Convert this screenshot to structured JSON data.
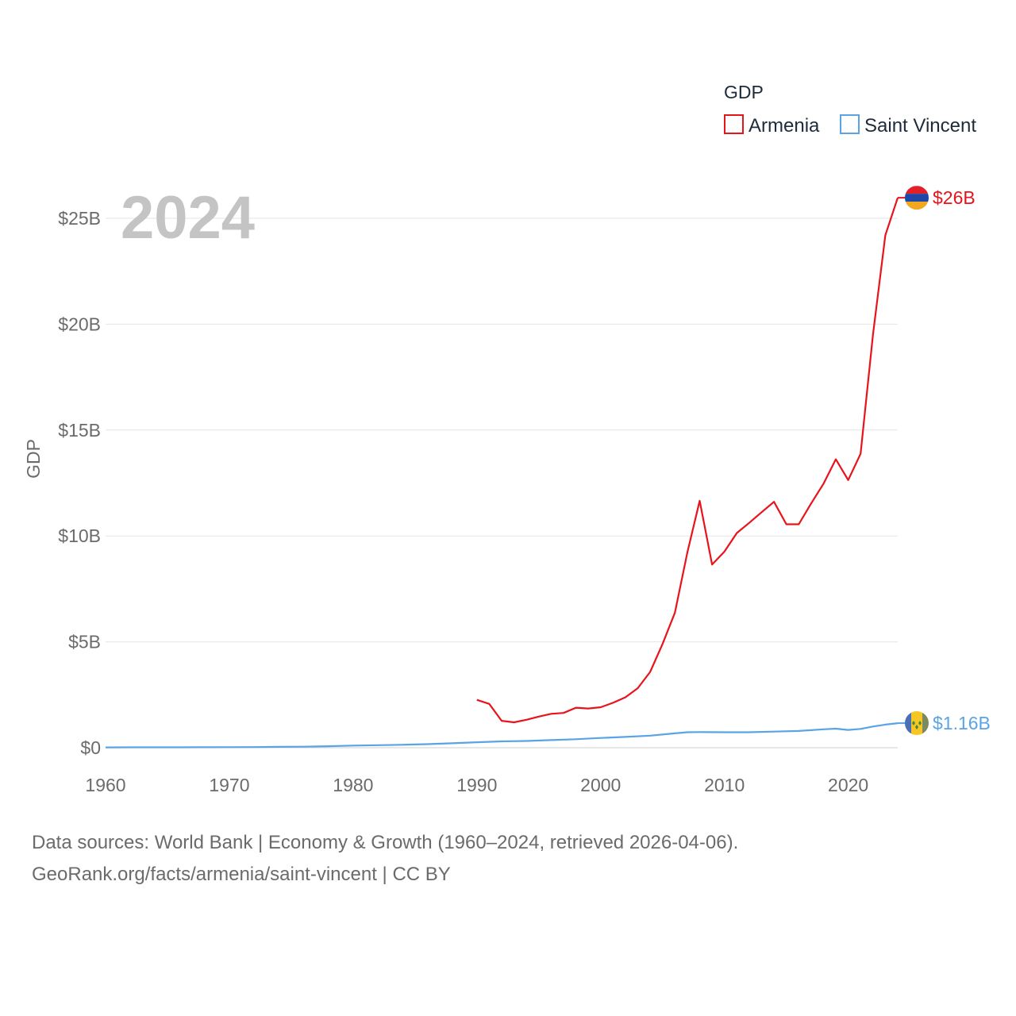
{
  "chart_data": {
    "type": "line",
    "title": "",
    "current_year": "2024",
    "xlabel": "",
    "ylabel": "GDP",
    "xlim": [
      1960,
      2024
    ],
    "ylim": [
      0,
      27
    ],
    "x_ticks": [
      1960,
      1970,
      1980,
      1990,
      2000,
      2010,
      2020
    ],
    "x_tick_labels": [
      "1960",
      "1970",
      "1980",
      "1990",
      "2000",
      "2010",
      "2020"
    ],
    "y_ticks": [
      0,
      5,
      10,
      15,
      20,
      25
    ],
    "y_tick_labels": [
      "$0",
      "$5B",
      "$10B",
      "$15B",
      "$20B",
      "$25B"
    ],
    "legend": {
      "title": "GDP",
      "position": "top-right"
    },
    "series": [
      {
        "name": "Armenia",
        "color": "#e8131b",
        "end_label": "$26B",
        "flag_icon": "armenia-flag-icon",
        "x": [
          1990,
          1991,
          1992,
          1993,
          1994,
          1995,
          1996,
          1997,
          1998,
          1999,
          2000,
          2001,
          2002,
          2003,
          2004,
          2005,
          2006,
          2007,
          2008,
          2009,
          2010,
          2011,
          2012,
          2013,
          2014,
          2015,
          2016,
          2017,
          2018,
          2019,
          2020,
          2021,
          2022,
          2023,
          2024
        ],
        "values": [
          2.26,
          2.07,
          1.27,
          1.2,
          1.32,
          1.47,
          1.6,
          1.64,
          1.89,
          1.85,
          1.91,
          2.12,
          2.38,
          2.81,
          3.58,
          4.9,
          6.38,
          9.21,
          11.66,
          8.65,
          9.26,
          10.14,
          10.62,
          11.12,
          11.61,
          10.55,
          10.55,
          11.53,
          12.46,
          13.62,
          12.64,
          13.88,
          19.5,
          24.2,
          25.97
        ]
      },
      {
        "name": "Saint Vincent",
        "color": "#5aa3e6",
        "end_label": "$1.16B",
        "flag_icon": "saint-vincent-flag-icon",
        "x": [
          1960,
          1962,
          1964,
          1966,
          1968,
          1970,
          1972,
          1974,
          1976,
          1978,
          1980,
          1982,
          1984,
          1986,
          1988,
          1990,
          1992,
          1994,
          1996,
          1998,
          2000,
          2002,
          2004,
          2006,
          2007,
          2008,
          2010,
          2012,
          2014,
          2016,
          2018,
          2019,
          2020,
          2021,
          2022,
          2023,
          2024
        ],
        "values": [
          0.015,
          0.017,
          0.018,
          0.02,
          0.022,
          0.025,
          0.03,
          0.04,
          0.05,
          0.07,
          0.1,
          0.12,
          0.14,
          0.17,
          0.21,
          0.26,
          0.3,
          0.32,
          0.36,
          0.4,
          0.46,
          0.51,
          0.57,
          0.68,
          0.73,
          0.74,
          0.73,
          0.73,
          0.76,
          0.79,
          0.87,
          0.9,
          0.84,
          0.89,
          1.0,
          1.09,
          1.16
        ]
      }
    ]
  },
  "footer": {
    "line1": "Data sources: World Bank | Economy & Growth (1960–2024, retrieved 2026-04-06).",
    "line2": "GeoRank.org/facts/armenia/saint-vincent | CC BY"
  }
}
